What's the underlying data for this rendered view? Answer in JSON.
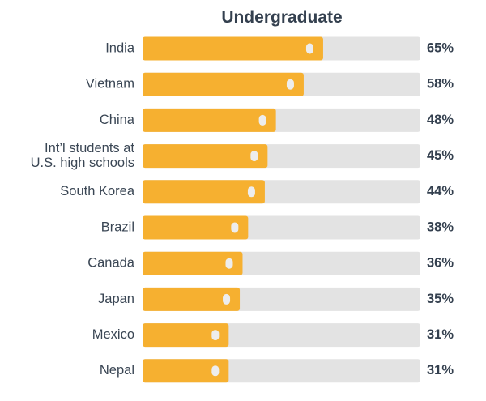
{
  "chart_data": {
    "type": "bar",
    "title": "Undergraduate",
    "categories": [
      "India",
      "Vietnam",
      "China",
      "Int’l students at\nU.S. high schools",
      "South Korea",
      "Brazil",
      "Canada",
      "Japan",
      "Mexico",
      "Nepal"
    ],
    "values": [
      65,
      58,
      48,
      45,
      44,
      38,
      36,
      35,
      31,
      31
    ],
    "value_labels": [
      "65%",
      "58%",
      "48%",
      "45%",
      "44%",
      "38%",
      "36%",
      "35%",
      "31%",
      "31%"
    ],
    "xlim": [
      0,
      100
    ],
    "orientation": "horizontal",
    "grid": false,
    "legend": "none",
    "colors": {
      "bar": "#f6b030",
      "track": "#e3e3e3",
      "marker": "#ededed",
      "category_text": "#3a4654",
      "value_text": "#34404f",
      "title_text": "#34404f"
    }
  }
}
